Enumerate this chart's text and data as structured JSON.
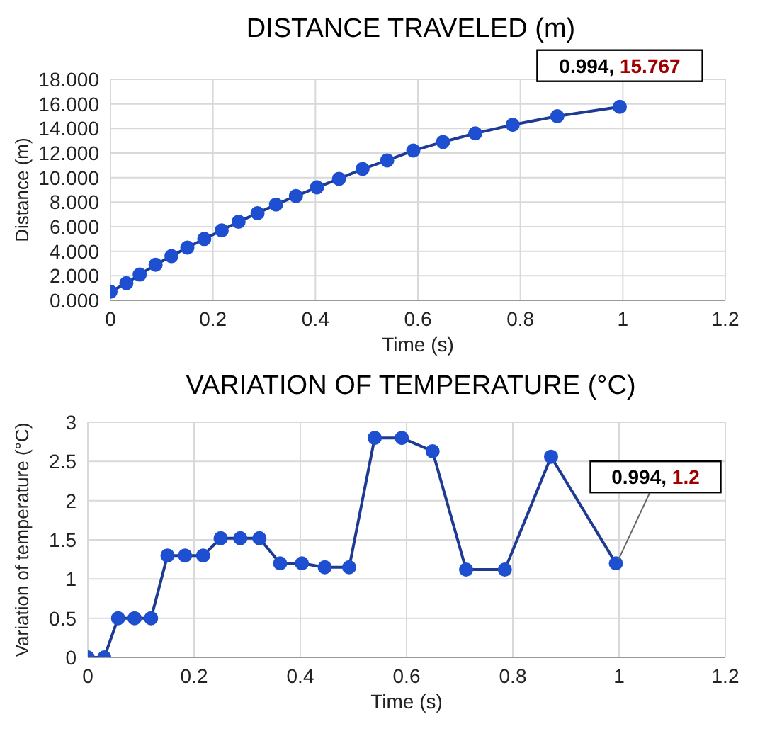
{
  "chart_data": [
    {
      "type": "line",
      "title": "DISTANCE TRAVELED (m)",
      "xlabel": "Time (s)",
      "ylabel": "Distance (m)",
      "x": [
        0,
        0.031,
        0.057,
        0.088,
        0.119,
        0.15,
        0.183,
        0.217,
        0.25,
        0.287,
        0.323,
        0.362,
        0.403,
        0.446,
        0.492,
        0.54,
        0.591,
        0.649,
        0.712,
        0.785,
        0.872,
        0.994
      ],
      "series": [
        {
          "color": "#1f3a93",
          "values": [
            0.7,
            1.4,
            2.1,
            2.9,
            3.6,
            4.3,
            5.0,
            5.7,
            6.4,
            7.1,
            7.8,
            8.5,
            9.2,
            9.9,
            10.7,
            11.4,
            12.2,
            12.9,
            13.6,
            14.3,
            15.0,
            15.767
          ]
        }
      ],
      "xlim": [
        0,
        1.2
      ],
      "xticks": [
        0,
        0.2,
        0.4,
        0.6,
        0.8,
        1,
        1.2
      ],
      "ylim": [
        0,
        18
      ],
      "yticks": [
        {
          "value": 0,
          "label": "0.000"
        },
        {
          "value": 2,
          "label": "2.000"
        },
        {
          "value": 4,
          "label": "4.000"
        },
        {
          "value": 6,
          "label": "6.000"
        },
        {
          "value": 8,
          "label": "8.000"
        },
        {
          "value": 10,
          "label": "10.000"
        },
        {
          "value": 12,
          "label": "12.000"
        },
        {
          "value": 14,
          "label": "14.000"
        },
        {
          "value": 16,
          "label": "16.000"
        },
        {
          "value": 18,
          "label": "18.000"
        }
      ],
      "grid": true,
      "marker": "circle",
      "line_style": "solid",
      "annotations": [
        {
          "text": "0.994, 15.767",
          "x": 0.994,
          "y": 15.767
        }
      ]
    },
    {
      "type": "line",
      "title": "VARIATION OF TEMPERATURE (°C)",
      "xlabel": "Time (s)",
      "ylabel": "Variation of temperature (°C)",
      "x": [
        0,
        0.031,
        0.057,
        0.088,
        0.119,
        0.15,
        0.183,
        0.217,
        0.25,
        0.287,
        0.323,
        0.362,
        0.403,
        0.446,
        0.492,
        0.54,
        0.591,
        0.649,
        0.712,
        0.785,
        0.872,
        0.994
      ],
      "series": [
        {
          "color": "#1f3a93",
          "values": [
            0,
            0,
            0.5,
            0.5,
            0.5,
            1.3,
            1.3,
            1.3,
            1.52,
            1.52,
            1.52,
            1.2,
            1.2,
            1.15,
            1.15,
            2.8,
            2.8,
            2.63,
            1.12,
            1.12,
            2.56,
            1.2
          ]
        }
      ],
      "xlim": [
        0,
        1.2
      ],
      "xticks": [
        0,
        0.2,
        0.4,
        0.6,
        0.8,
        1,
        1.2
      ],
      "ylim": [
        0,
        3
      ],
      "yticks": [
        0,
        0.5,
        1,
        1.5,
        2,
        2.5,
        3
      ],
      "grid": true,
      "marker": "circle",
      "line_style": "solid",
      "annotations": [
        {
          "text": "0.994, 1.2",
          "x": 0.994,
          "y": 1.2
        }
      ]
    }
  ]
}
